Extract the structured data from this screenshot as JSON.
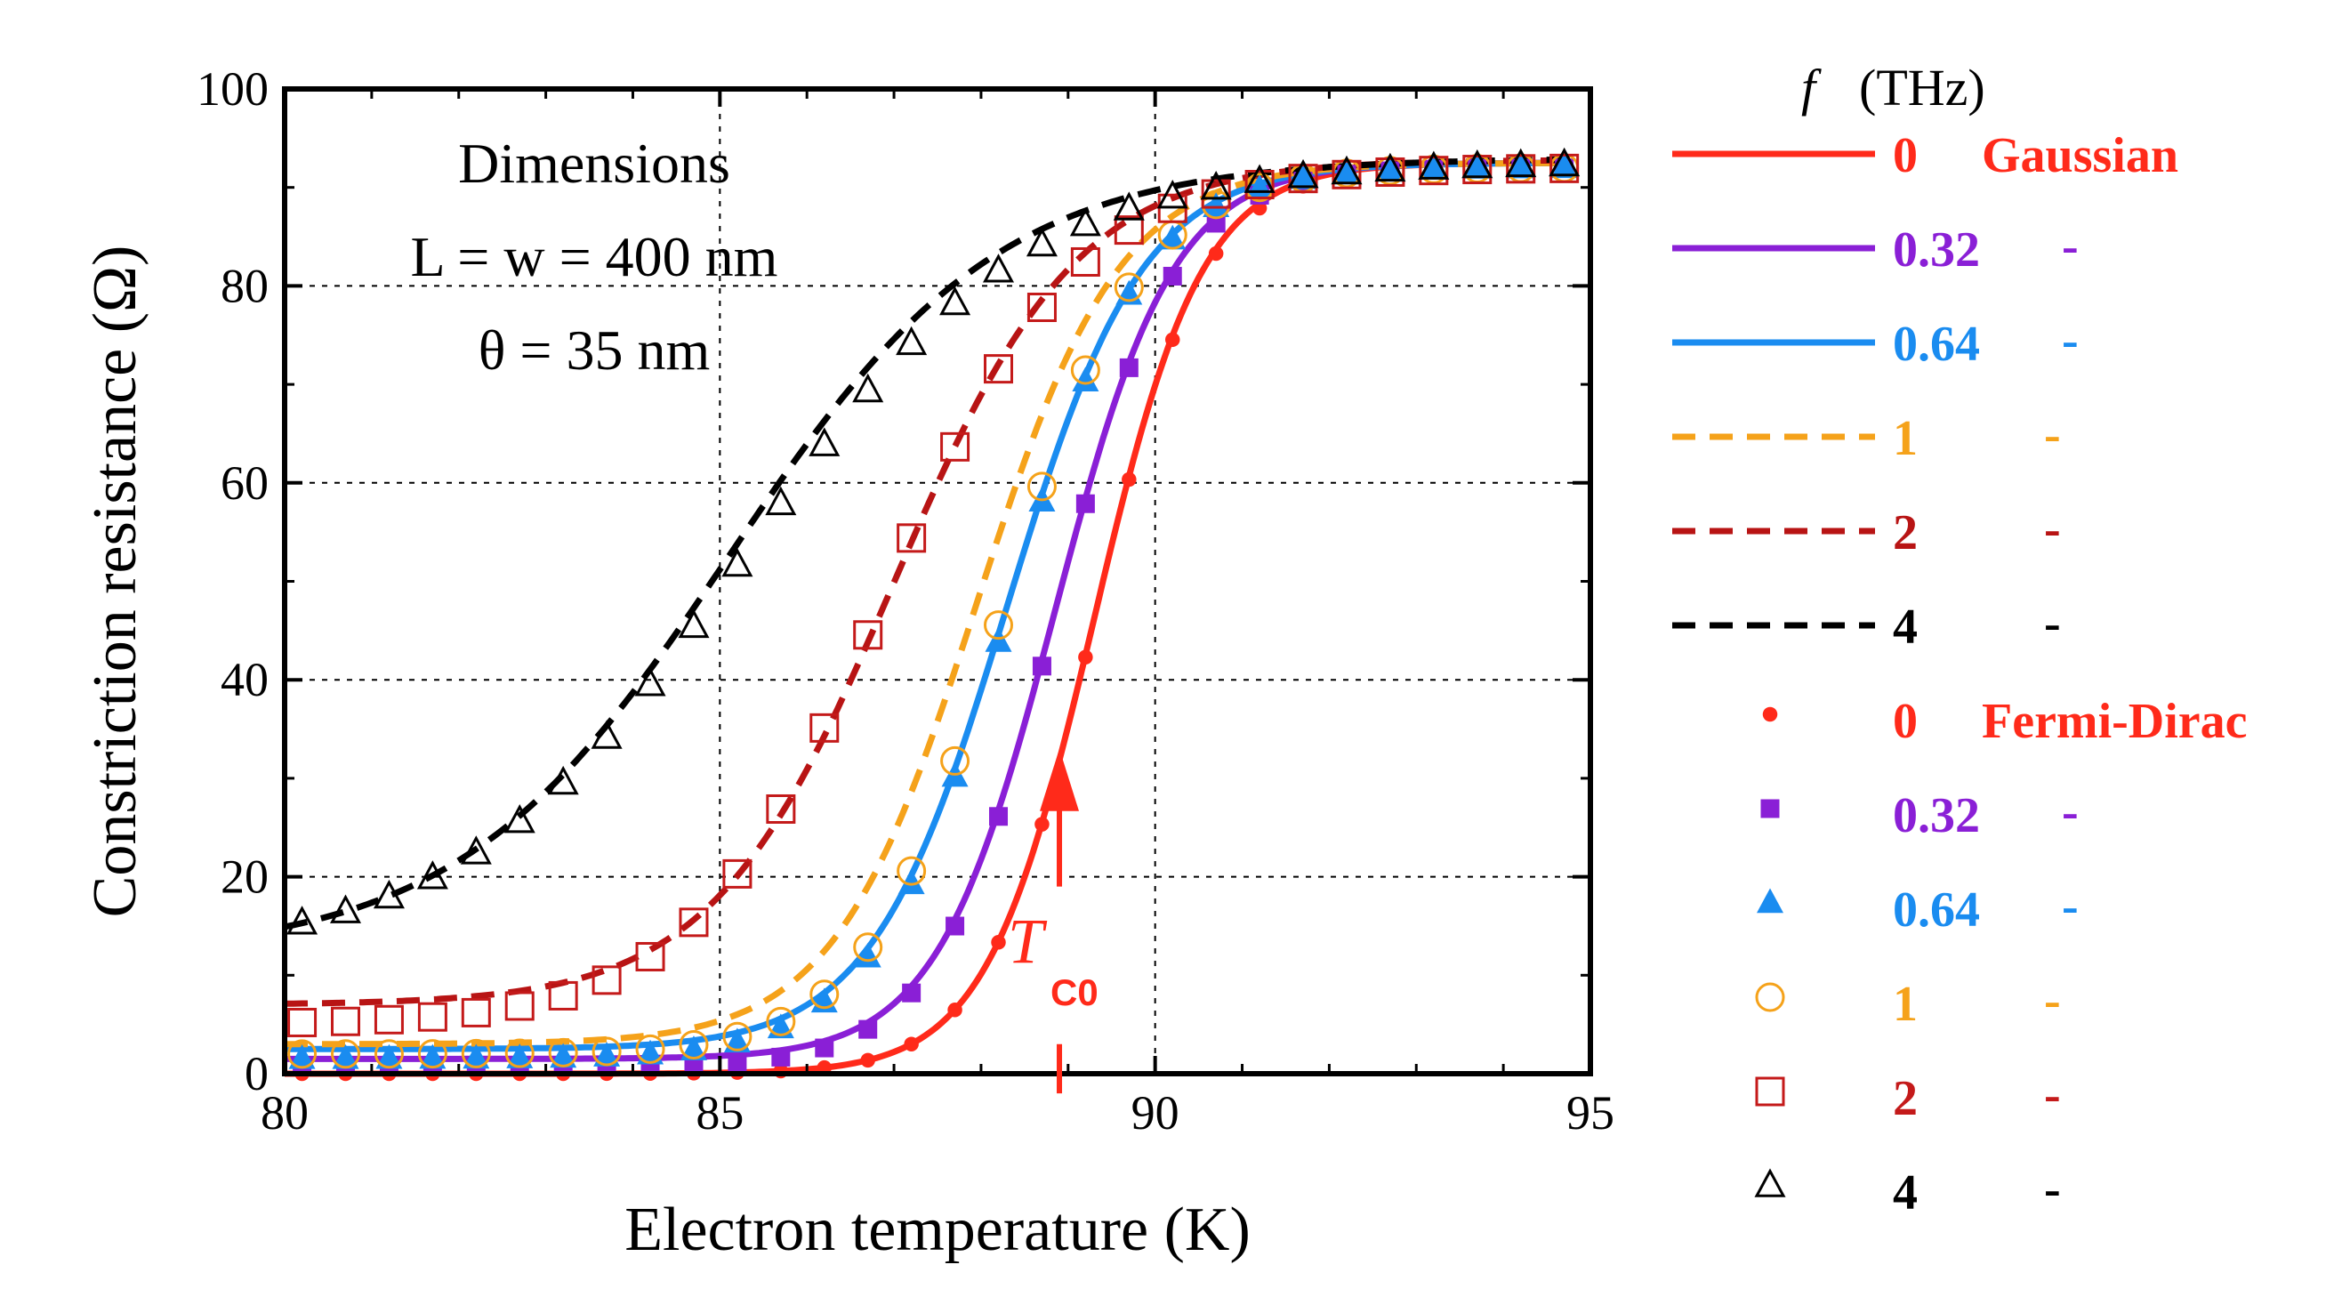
{
  "chart_data": {
    "type": "line",
    "xlabel": "Electron temperature (K)",
    "ylabel": "Constriction resistance (Ω)",
    "xlim": [
      80,
      95
    ],
    "ylim": [
      0,
      100
    ],
    "xticks": [
      "80",
      "85",
      "90",
      "95"
    ],
    "yticks": [
      "0",
      "20",
      "40",
      "60",
      "80",
      "100"
    ],
    "grid_x": [
      85,
      90
    ],
    "grid_y": [
      20,
      40,
      60,
      80
    ],
    "annotation": {
      "title": "Dimensions",
      "line1": "L = w = 400 nm",
      "line2": "θ = 35 nm"
    },
    "marker_annotation": {
      "label": "T",
      "subscript": "C0",
      "x": 88.9,
      "y_from": 2,
      "y_to": 33
    },
    "legend": {
      "header_symbol": "f",
      "header_unit": "(THz)",
      "gaussian_label": "Gaussian",
      "fermi_label": "Fermi-Dirac",
      "dash": "-"
    },
    "series": [
      {
        "name": "Gaussian 0",
        "f": "0",
        "model": "Gaussian",
        "color": "#ff2a1a",
        "style": "solid",
        "tc": 89.3,
        "w": 0.62,
        "rn": 92.5,
        "base": 0
      },
      {
        "name": "Gaussian 0.32",
        "f": "0.32",
        "model": "Gaussian",
        "color": "#8a1fd6",
        "style": "solid",
        "tc": 88.85,
        "w": 0.68,
        "rn": 92.5,
        "base": 1.5
      },
      {
        "name": "Gaussian 0.64",
        "f": "0.64",
        "model": "Gaussian",
        "color": "#1a8cf0",
        "style": "solid",
        "tc": 88.3,
        "w": 0.78,
        "rn": 92.5,
        "base": 2.5
      },
      {
        "name": "Gaussian 1",
        "f": "1",
        "model": "Gaussian",
        "color": "#f5a21a",
        "style": "dashed",
        "tc": 87.95,
        "w": 0.82,
        "rn": 92.5,
        "base": 3
      },
      {
        "name": "Gaussian 2",
        "f": "2",
        "model": "Gaussian",
        "color": "#b81414",
        "style": "dashed",
        "tc": 87.0,
        "w": 1.05,
        "rn": 92.8,
        "base": 7
      },
      {
        "name": "Gaussian 4",
        "f": "4",
        "model": "Gaussian",
        "color": "#000000",
        "style": "dashed",
        "tc": 85.1,
        "w": 1.55,
        "rn": 93.0,
        "base": 12
      },
      {
        "name": "Fermi-Dirac 0",
        "f": "0",
        "model": "Fermi-Dirac",
        "color": "#ff2a1a",
        "marker": "dot",
        "tc": 89.3,
        "w": 0.62,
        "rn": 92,
        "base": 0
      },
      {
        "name": "Fermi-Dirac 0.32",
        "f": "0.32",
        "model": "Fermi-Dirac",
        "color": "#8a1fd6",
        "marker": "square-filled",
        "tc": 88.85,
        "w": 0.68,
        "rn": 92,
        "base": 0.8
      },
      {
        "name": "Fermi-Dirac 0.64",
        "f": "0.64",
        "model": "Fermi-Dirac",
        "color": "#1a8cf0",
        "marker": "triangle-filled",
        "tc": 88.3,
        "w": 0.78,
        "rn": 92,
        "base": 1.5
      },
      {
        "name": "Fermi-Dirac 1",
        "f": "1",
        "model": "Fermi-Dirac",
        "color": "#f5a21a",
        "marker": "circle-open",
        "tc": 88.25,
        "w": 0.78,
        "rn": 92,
        "base": 2
      },
      {
        "name": "Fermi-Dirac 2",
        "f": "2",
        "model": "Fermi-Dirac",
        "color": "#c41a1a",
        "marker": "square-open",
        "tc": 86.9,
        "w": 1.1,
        "rn": 92,
        "base": 5
      },
      {
        "name": "Fermi-Dirac 4",
        "f": "4",
        "model": "Fermi-Dirac",
        "color": "#000000",
        "marker": "triangle-open",
        "tc": 85.25,
        "w": 1.6,
        "rn": 92.5,
        "base": 12
      }
    ]
  }
}
